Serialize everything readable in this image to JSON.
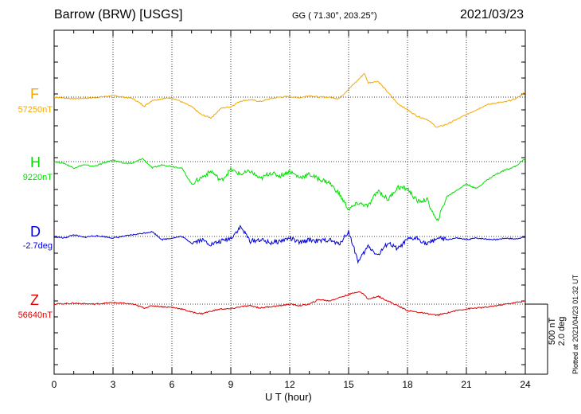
{
  "header": {
    "title": "Barrow (BRW)  [USGS]",
    "coords": "GG ( 71.30°, 203.25°)",
    "date": "2021/03/23"
  },
  "scale_label": "500 nT\n2.0 deg",
  "plotted_label": "Plotted at 2021/04/23 01:32 UT",
  "chart_data": {
    "type": "line",
    "xlabel": "U T (hour)",
    "xlim": [
      0,
      24
    ],
    "x_ticks": [
      0,
      3,
      6,
      9,
      12,
      15,
      18,
      21,
      24
    ],
    "grid": true,
    "series": [
      {
        "name": "F",
        "baseline": "57250nT",
        "color": "#f5a800",
        "x": [
          0,
          1,
          2,
          3,
          4,
          4.6,
          5,
          5.5,
          6,
          6.5,
          7,
          7.5,
          8,
          8.5,
          9,
          9.5,
          10,
          10.5,
          11,
          11.5,
          12,
          12.5,
          13,
          13.5,
          14,
          14.5,
          15,
          15.5,
          15.8,
          16,
          16.5,
          17,
          17.5,
          18,
          18.5,
          19,
          19.5,
          20,
          20.5,
          21,
          21.5,
          22,
          22.5,
          23,
          23.5,
          24
        ],
        "y": [
          0,
          -5,
          -2,
          5,
          -4,
          -28,
          -10,
          -5,
          -2,
          -15,
          -30,
          -55,
          -65,
          -35,
          -30,
          -12,
          -8,
          -14,
          -5,
          0,
          2,
          -2,
          5,
          0,
          0,
          -5,
          25,
          55,
          75,
          45,
          50,
          15,
          -20,
          -40,
          -60,
          -70,
          -95,
          -85,
          -70,
          -55,
          -40,
          -25,
          -18,
          -15,
          -5,
          15
        ]
      },
      {
        "name": "H",
        "baseline": "9220nT",
        "color": "#00e000",
        "x": [
          0,
          0.5,
          1,
          1.5,
          2,
          2.5,
          3,
          3.5,
          4,
          4.5,
          5,
          5.5,
          6,
          6.5,
          7,
          7.5,
          8,
          8.5,
          9,
          9.5,
          10,
          10.5,
          11,
          11.5,
          12,
          12.5,
          13,
          13.5,
          14,
          14.5,
          15,
          15.5,
          16,
          16.5,
          17,
          17.5,
          18,
          18.5,
          19,
          19.5,
          20,
          20.5,
          21,
          21.5,
          22,
          22.5,
          23,
          23.5,
          24
        ],
        "y": [
          0,
          -5,
          -20,
          -10,
          -15,
          -5,
          5,
          -5,
          -5,
          10,
          -20,
          -10,
          -15,
          -20,
          -70,
          -50,
          -30,
          -60,
          -25,
          -40,
          -30,
          -55,
          -35,
          -45,
          -30,
          -50,
          -40,
          -55,
          -65,
          -100,
          -150,
          -130,
          -140,
          -90,
          -120,
          -80,
          -85,
          -125,
          -120,
          -190,
          -110,
          -90,
          -70,
          -85,
          -60,
          -40,
          -25,
          -15,
          10
        ]
      },
      {
        "name": "D",
        "baseline": "-2.7deg",
        "color": "#0000e0",
        "x": [
          0,
          0.5,
          1,
          1.5,
          2,
          2.5,
          3,
          3.5,
          4,
          4.5,
          5,
          5.5,
          6,
          6.5,
          7,
          7.5,
          8,
          8.5,
          9,
          9.5,
          10,
          10.5,
          11,
          11.5,
          12,
          12.5,
          13,
          13.5,
          14,
          14.5,
          15,
          15.5,
          16,
          16.5,
          17,
          17.5,
          18,
          18.5,
          19,
          19.5,
          20,
          20.5,
          21,
          21.5,
          22,
          22.5,
          23,
          23.5,
          24
        ],
        "y": [
          0,
          -5,
          5,
          -3,
          2,
          0,
          -5,
          0,
          5,
          10,
          15,
          -10,
          -5,
          0,
          -20,
          -10,
          -25,
          -15,
          -5,
          30,
          -15,
          -10,
          -20,
          -15,
          -5,
          -20,
          -10,
          -15,
          -10,
          -25,
          15,
          -80,
          -30,
          -60,
          -20,
          -40,
          -10,
          -5,
          -25,
          -5,
          -10,
          -5,
          -10,
          -5,
          -8,
          -10,
          -5,
          -8,
          0
        ]
      },
      {
        "name": "Z",
        "baseline": "56640nT",
        "color": "#e00000",
        "x": [
          0,
          1,
          2,
          3,
          4,
          4.6,
          5,
          5.5,
          6,
          6.5,
          7,
          7.5,
          8,
          8.5,
          9,
          9.5,
          10,
          10.5,
          11,
          11.5,
          12,
          12.5,
          13,
          13.5,
          14,
          14.5,
          15,
          15.5,
          15.8,
          16,
          16.5,
          17,
          17.5,
          18,
          18.5,
          19,
          19.5,
          20,
          20.5,
          21,
          21.5,
          22,
          22.5,
          23,
          23.5,
          24
        ],
        "y": [
          0,
          3,
          0,
          5,
          0,
          -12,
          -5,
          -8,
          -10,
          -15,
          -25,
          -30,
          -22,
          -15,
          -15,
          -8,
          -5,
          -12,
          -8,
          -5,
          0,
          -5,
          0,
          15,
          10,
          20,
          30,
          40,
          30,
          15,
          25,
          10,
          -5,
          -20,
          -25,
          -30,
          -35,
          -28,
          -20,
          -15,
          -12,
          -10,
          -5,
          0,
          5,
          10
        ]
      }
    ]
  }
}
